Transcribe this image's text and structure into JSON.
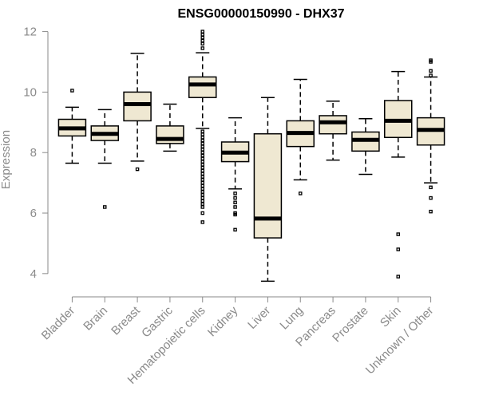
{
  "chart_data": {
    "type": "boxplot",
    "title": "ENSG00000150990 - DHX37",
    "xlabel": "",
    "ylabel": "Expression",
    "ylim": [
      3.6,
      12.2
    ],
    "yticks": [
      4,
      6,
      8,
      10,
      12
    ],
    "box_fill": "#efe8d2",
    "axis_color": "#8a8a8a",
    "categories": [
      "Bladder",
      "Brain",
      "Breast",
      "Gastric",
      "Hematopoietic cells",
      "Kidney",
      "Liver",
      "Lung",
      "Pancreas",
      "Prostate",
      "Skin",
      "Unknown / Other"
    ],
    "boxes": [
      {
        "category": "Bladder",
        "whisker_low": 7.65,
        "q1": 8.55,
        "median": 8.8,
        "q3": 9.1,
        "whisker_high": 9.5,
        "outliers": [
          10.05
        ]
      },
      {
        "category": "Brain",
        "whisker_low": 7.65,
        "q1": 8.4,
        "median": 8.62,
        "q3": 8.88,
        "whisker_high": 9.42,
        "outliers": [
          6.2
        ]
      },
      {
        "category": "Breast",
        "whisker_low": 7.72,
        "q1": 9.05,
        "median": 9.6,
        "q3": 10.0,
        "whisker_high": 11.28,
        "outliers": [
          7.45
        ]
      },
      {
        "category": "Gastric",
        "whisker_low": 8.05,
        "q1": 8.3,
        "median": 8.45,
        "q3": 8.88,
        "whisker_high": 9.6,
        "outliers": []
      },
      {
        "category": "Hematopoietic cells",
        "whisker_low": 8.8,
        "q1": 9.82,
        "median": 10.25,
        "q3": 10.5,
        "whisker_high": 11.3,
        "outliers": [
          12.0,
          11.9,
          11.8,
          11.7,
          11.6,
          11.45,
          8.7,
          8.6,
          8.5,
          8.4,
          8.3,
          8.2,
          8.1,
          8.0,
          7.9,
          7.8,
          7.7,
          7.6,
          7.5,
          7.4,
          7.3,
          7.2,
          7.1,
          7.0,
          6.9,
          6.8,
          6.7,
          6.6,
          6.5,
          6.4,
          6.3,
          6.2,
          6.0,
          5.7
        ]
      },
      {
        "category": "Kidney",
        "whisker_low": 6.8,
        "q1": 7.7,
        "median": 8.0,
        "q3": 8.35,
        "whisker_high": 9.15,
        "outliers": [
          6.65,
          6.5,
          6.35,
          6.2,
          6.0,
          5.95,
          5.45
        ]
      },
      {
        "category": "Liver",
        "whisker_low": 3.75,
        "q1": 5.18,
        "median": 5.82,
        "q3": 8.62,
        "whisker_high": 9.82,
        "outliers": []
      },
      {
        "category": "Lung",
        "whisker_low": 7.1,
        "q1": 8.2,
        "median": 8.65,
        "q3": 9.05,
        "whisker_high": 10.42,
        "outliers": [
          6.65
        ]
      },
      {
        "category": "Pancreas",
        "whisker_low": 7.75,
        "q1": 8.62,
        "median": 9.0,
        "q3": 9.22,
        "whisker_high": 9.7,
        "outliers": []
      },
      {
        "category": "Prostate",
        "whisker_low": 7.28,
        "q1": 8.05,
        "median": 8.42,
        "q3": 8.68,
        "whisker_high": 9.12,
        "outliers": []
      },
      {
        "category": "Skin",
        "whisker_low": 7.85,
        "q1": 8.5,
        "median": 9.05,
        "q3": 9.72,
        "whisker_high": 10.68,
        "outliers": [
          5.3,
          4.8,
          3.9
        ]
      },
      {
        "category": "Unknown / Other",
        "whisker_low": 7.0,
        "q1": 8.25,
        "median": 8.75,
        "q3": 9.15,
        "whisker_high": 10.5,
        "outliers": [
          11.05,
          11.0,
          10.7,
          10.55,
          6.85,
          6.5,
          6.05
        ]
      }
    ]
  }
}
